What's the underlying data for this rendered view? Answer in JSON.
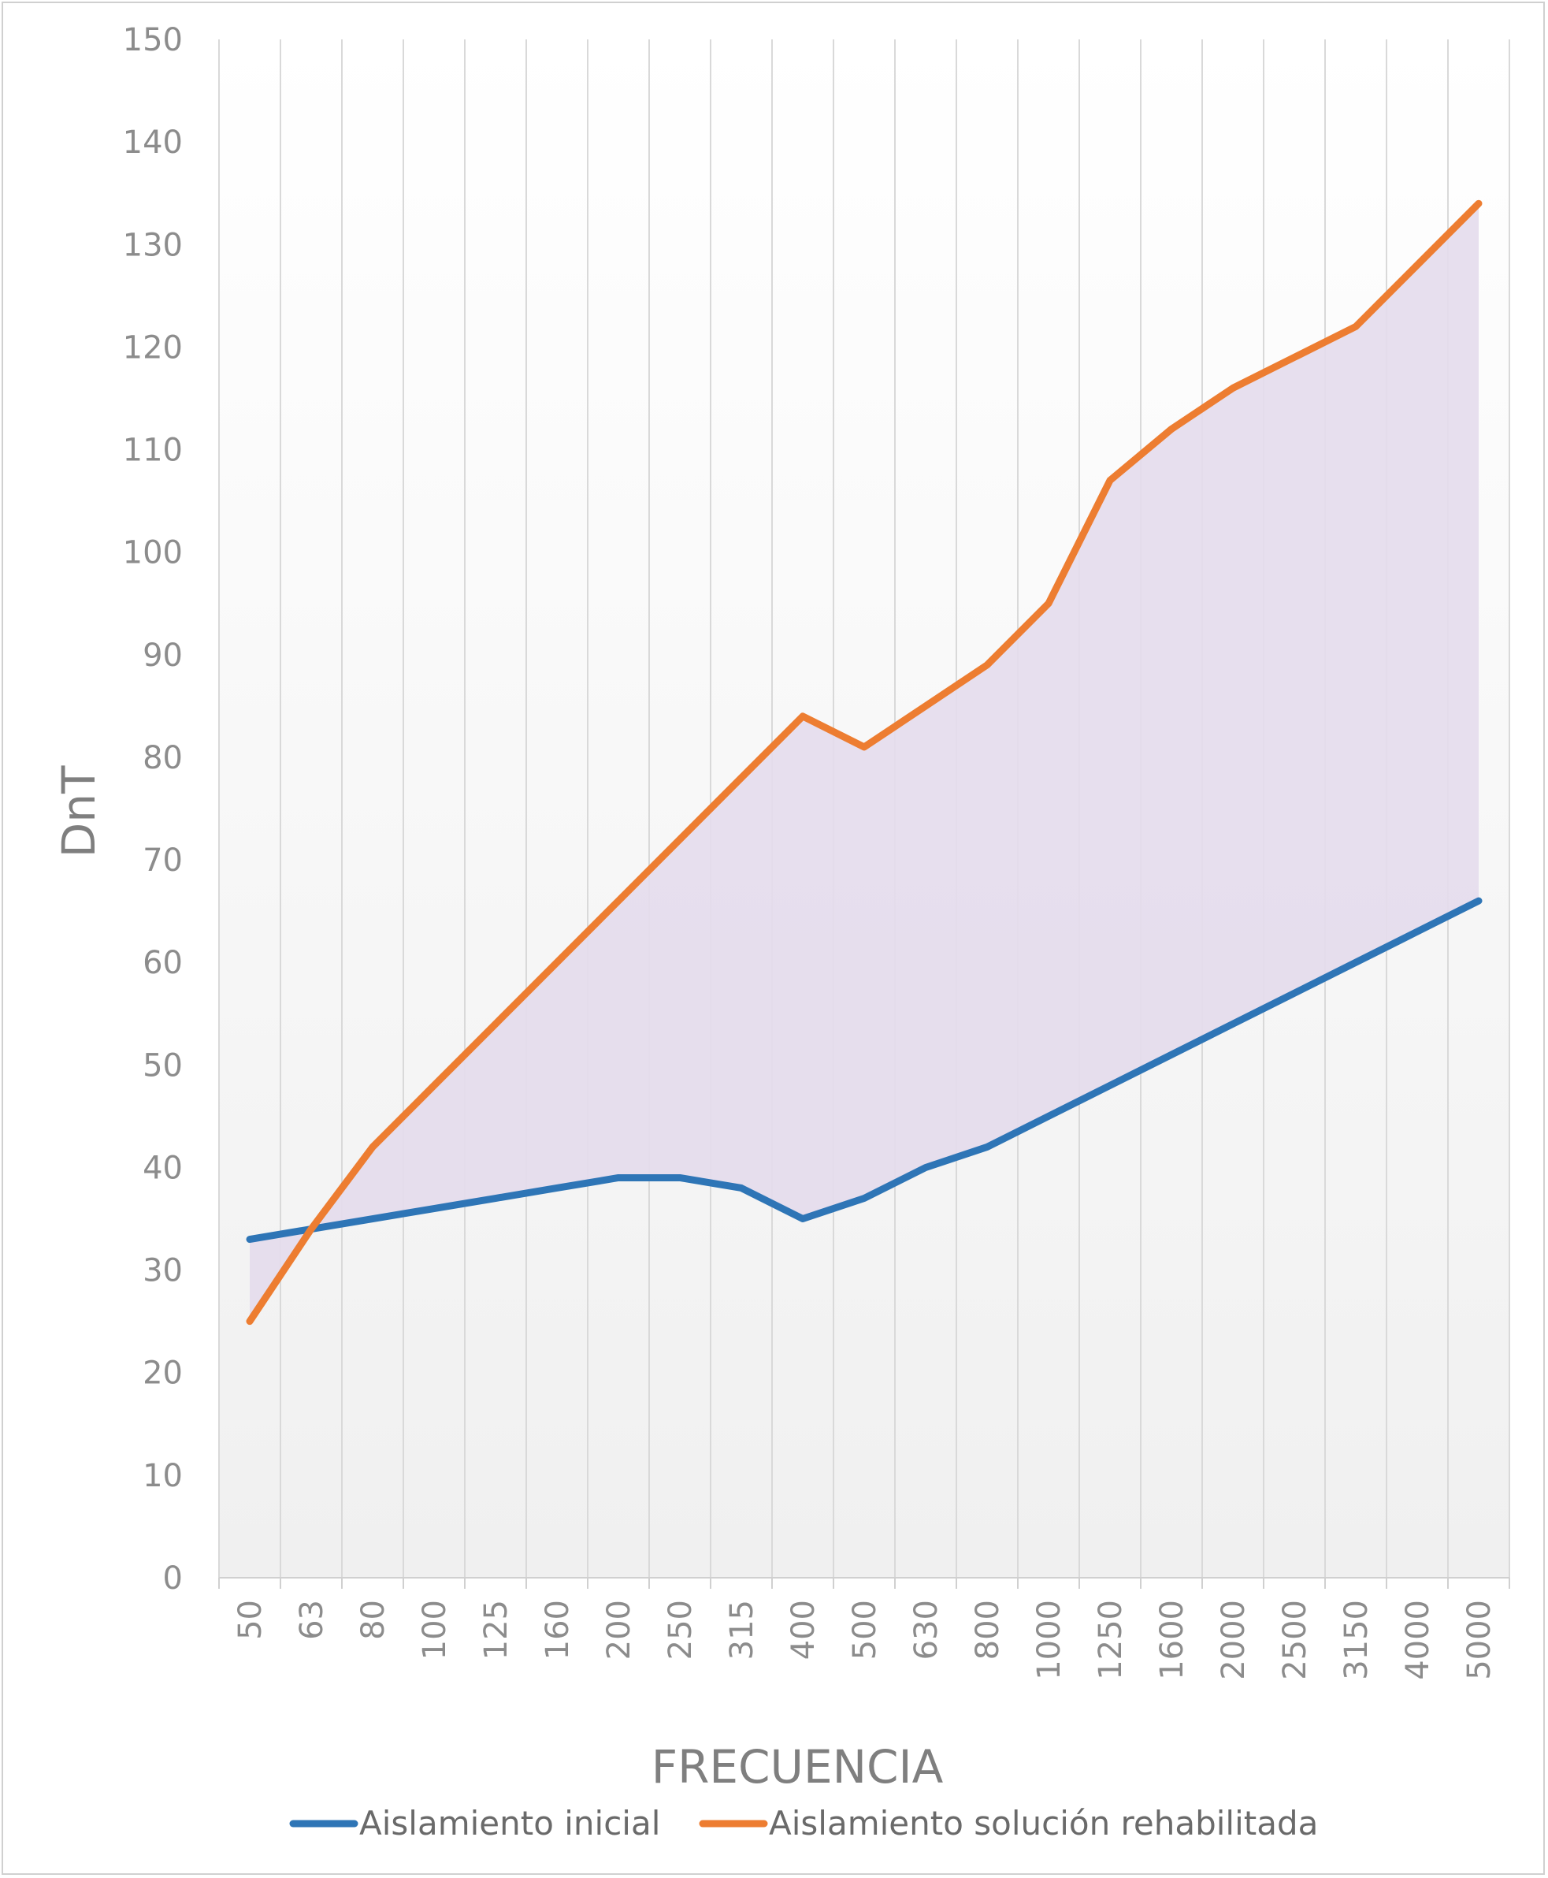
{
  "chart_data": {
    "type": "line",
    "title": "",
    "xlabel": "FRECUENCIA",
    "ylabel": "DnT",
    "categories": [
      "50",
      "63",
      "80",
      "100",
      "125",
      "160",
      "200",
      "250",
      "315",
      "400",
      "500",
      "630",
      "800",
      "1000",
      "1250",
      "1600",
      "2000",
      "2500",
      "3150",
      "4000",
      "5000"
    ],
    "ylim": [
      0,
      150
    ],
    "yticks": [
      "0",
      "10",
      "20",
      "30",
      "40",
      "50",
      "60",
      "70",
      "80",
      "90",
      "100",
      "110",
      "120",
      "130",
      "140",
      "150"
    ],
    "grid": "vertical",
    "legend": "bottom",
    "series": [
      {
        "name": "Aislamiento inicial",
        "color": "#2e75b6",
        "values": [
          33,
          34,
          35,
          36,
          37,
          38,
          39,
          39,
          38,
          35,
          37,
          40,
          42,
          45,
          48,
          51,
          54,
          57,
          60,
          63,
          66
        ]
      },
      {
        "name": "Aislamiento solución rehabilitada",
        "color": "#ed7d31",
        "values": [
          25,
          34,
          42,
          48,
          54,
          60,
          66,
          72,
          78,
          84,
          81,
          85,
          89,
          95,
          107,
          112,
          116,
          119,
          122,
          128,
          134
        ]
      }
    ],
    "fill_between": {
      "color": "#e4dcec"
    }
  }
}
